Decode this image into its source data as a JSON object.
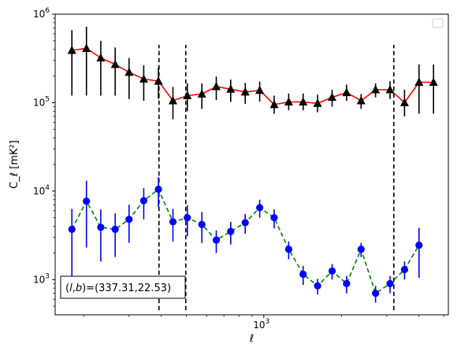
{
  "chart_data": {
    "type": "line",
    "title": "",
    "xlabel": "ℓ",
    "ylabel": "C_ℓ  [mK²]",
    "x_scale": "log",
    "y_scale": "log",
    "xlim": [
      155,
      5200
    ],
    "ylim": [
      400,
      1000000
    ],
    "grid": false,
    "legend": {
      "placement": "top-right",
      "entries": []
    },
    "x_ticks": [
      {
        "value": 1000,
        "base": "10",
        "exp": "3"
      }
    ],
    "y_ticks": [
      {
        "value": 1000,
        "base": "10",
        "exp": "3"
      },
      {
        "value": 10000,
        "base": "10",
        "exp": "4"
      },
      {
        "value": 100000,
        "base": "10",
        "exp": "5"
      },
      {
        "value": 1000000,
        "base": "10",
        "exp": "6"
      }
    ],
    "y_minor_ticks": [
      2000,
      3000,
      4000,
      5000,
      6000,
      7000,
      8000,
      9000,
      20000,
      30000,
      40000,
      50000,
      60000,
      70000,
      80000,
      90000,
      200000,
      300000,
      400000,
      500000,
      600000,
      700000,
      800000,
      900000,
      500,
      600,
      700,
      800,
      900
    ],
    "x_minor_ticks": [
      200,
      300,
      400,
      500,
      600,
      700,
      800,
      900,
      2000,
      3000,
      4000,
      5000
    ],
    "vertical_lines": [
      {
        "x": 392,
        "ymin": 450,
        "ymax": 450000,
        "style": "dashed",
        "color": "#000000"
      },
      {
        "x": 498,
        "ymin": 450,
        "ymax": 450000,
        "style": "dashed",
        "color": "#000000"
      },
      {
        "x": 3195,
        "ymin": 450,
        "ymax": 450000,
        "style": "dashed",
        "color": "#000000"
      }
    ],
    "series": [
      {
        "line_color": "#ff0000",
        "marker_color": "#000000",
        "marker": "triangle",
        "linestyle": "solid",
        "x": [
          180,
          205,
          233,
          265,
          300,
          342,
          390,
          444,
          505,
          575,
          654,
          744,
          847,
          964,
          1097,
          1249,
          1421,
          1617,
          1841,
          2095,
          2385,
          2714,
          3089,
          3516,
          4002,
          4555
        ],
        "y": [
          390000,
          410000,
          320000,
          270000,
          220000,
          185000,
          175000,
          105000,
          120000,
          125000,
          152000,
          142000,
          132000,
          138000,
          95000,
          102000,
          102000,
          98000,
          115000,
          130000,
          105000,
          140000,
          140000,
          100000,
          170000,
          170000
        ],
        "err_lo": [
          270000,
          290000,
          200000,
          150000,
          110000,
          80000,
          65000,
          40000,
          40000,
          40000,
          45000,
          40000,
          35000,
          35000,
          20000,
          20000,
          20000,
          20000,
          25000,
          25000,
          20000,
          25000,
          30000,
          30000,
          95000,
          95000
        ],
        "err_hi": [
          270000,
          310000,
          180000,
          150000,
          100000,
          80000,
          75000,
          45000,
          45000,
          40000,
          45000,
          40000,
          35000,
          35000,
          25000,
          25000,
          25000,
          25000,
          25000,
          30000,
          20000,
          25000,
          35000,
          40000,
          100000,
          100000
        ]
      },
      {
        "line_color": "#008000",
        "marker_color": "#0000ff",
        "marker": "circle",
        "linestyle": "dashed",
        "x": [
          180,
          205,
          233,
          265,
          300,
          342,
          390,
          444,
          505,
          575,
          654,
          744,
          847,
          964,
          1097,
          1249,
          1421,
          1617,
          1841,
          2095,
          2385,
          2714,
          3089,
          3516,
          4002
        ],
        "y": [
          3700,
          7700,
          3900,
          3700,
          4800,
          7800,
          10500,
          4500,
          5000,
          4200,
          2800,
          3500,
          4400,
          6500,
          5000,
          2200,
          1150,
          850,
          1250,
          900,
          2200,
          700,
          900,
          1300,
          2450
        ],
        "err_lo": [
          2600,
          5400,
          2300,
          1900,
          2200,
          3000,
          3900,
          1800,
          1900,
          1600,
          800,
          1000,
          1100,
          1500,
          1200,
          500,
          280,
          170,
          250,
          200,
          400,
          150,
          200,
          300,
          1400
        ],
        "err_hi": [
          2600,
          5400,
          2300,
          1900,
          2200,
          3000,
          3900,
          1800,
          1900,
          1600,
          800,
          1000,
          1100,
          1500,
          1200,
          500,
          280,
          170,
          250,
          200,
          400,
          150,
          200,
          300,
          1400
        ]
      }
    ],
    "annotation": {
      "text": "(l,b)=(337.31,22.53)",
      "placement": "bottom-left"
    }
  }
}
